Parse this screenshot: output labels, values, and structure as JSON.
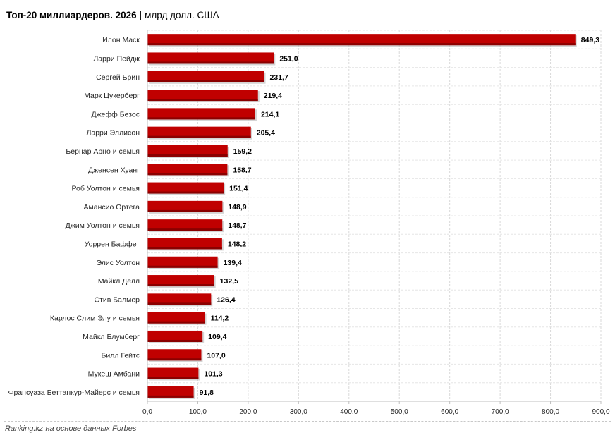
{
  "header": {
    "title": "Топ-20 миллиардеров. 2026",
    "separator": "|",
    "unit": "млрд долл. США"
  },
  "footer": {
    "source": "Ranking.kz на основе данных Forbes"
  },
  "colors": {
    "bar": "#c00000",
    "bar_shadow": "#8a0000",
    "grid": "#d9d9d9"
  },
  "chart_data": {
    "type": "bar",
    "orientation": "horizontal",
    "title": "Топ-20 миллиардеров. 2026",
    "unit": "млрд долл. США",
    "categories": [
      "Илон Маск",
      "Ларри Пейдж",
      "Сергей Брин",
      "Марк Цукерберг",
      "Джефф Безос",
      "Ларри Эллисон",
      "Бернар Арно и семья",
      "Дженсен Хуанг",
      "Роб Уолтон и семья",
      "Амансио Ортега",
      "Джим Уолтон и семья",
      "Уоррен Баффет",
      "Элис Уолтон",
      "Майкл Делл",
      "Стив Балмер",
      "Карлос Слим Элу и семья",
      "Майкл Блумберг",
      "Билл Гейтс",
      "Мукеш Амбани",
      "Франсуаза Беттанкур-Майерс и семья"
    ],
    "values": [
      849.3,
      251.0,
      231.7,
      219.4,
      214.1,
      205.4,
      159.2,
      158.7,
      151.4,
      148.9,
      148.7,
      148.2,
      139.4,
      132.5,
      126.4,
      114.2,
      109.4,
      107.0,
      101.3,
      91.8
    ],
    "value_labels": [
      "849,3",
      "251,0",
      "231,7",
      "219,4",
      "214,1",
      "205,4",
      "159,2",
      "158,7",
      "151,4",
      "148,9",
      "148,7",
      "148,2",
      "139,4",
      "132,5",
      "126,4",
      "114,2",
      "109,4",
      "107,0",
      "101,3",
      "91,8"
    ],
    "xlim": [
      0,
      900
    ],
    "x_ticks": [
      0,
      100,
      200,
      300,
      400,
      500,
      600,
      700,
      800,
      900
    ],
    "x_tick_labels": [
      "0,0",
      "100,0",
      "200,0",
      "300,0",
      "400,0",
      "500,0",
      "600,0",
      "700,0",
      "800,0",
      "900,0"
    ],
    "grid": true,
    "legend": "none"
  }
}
